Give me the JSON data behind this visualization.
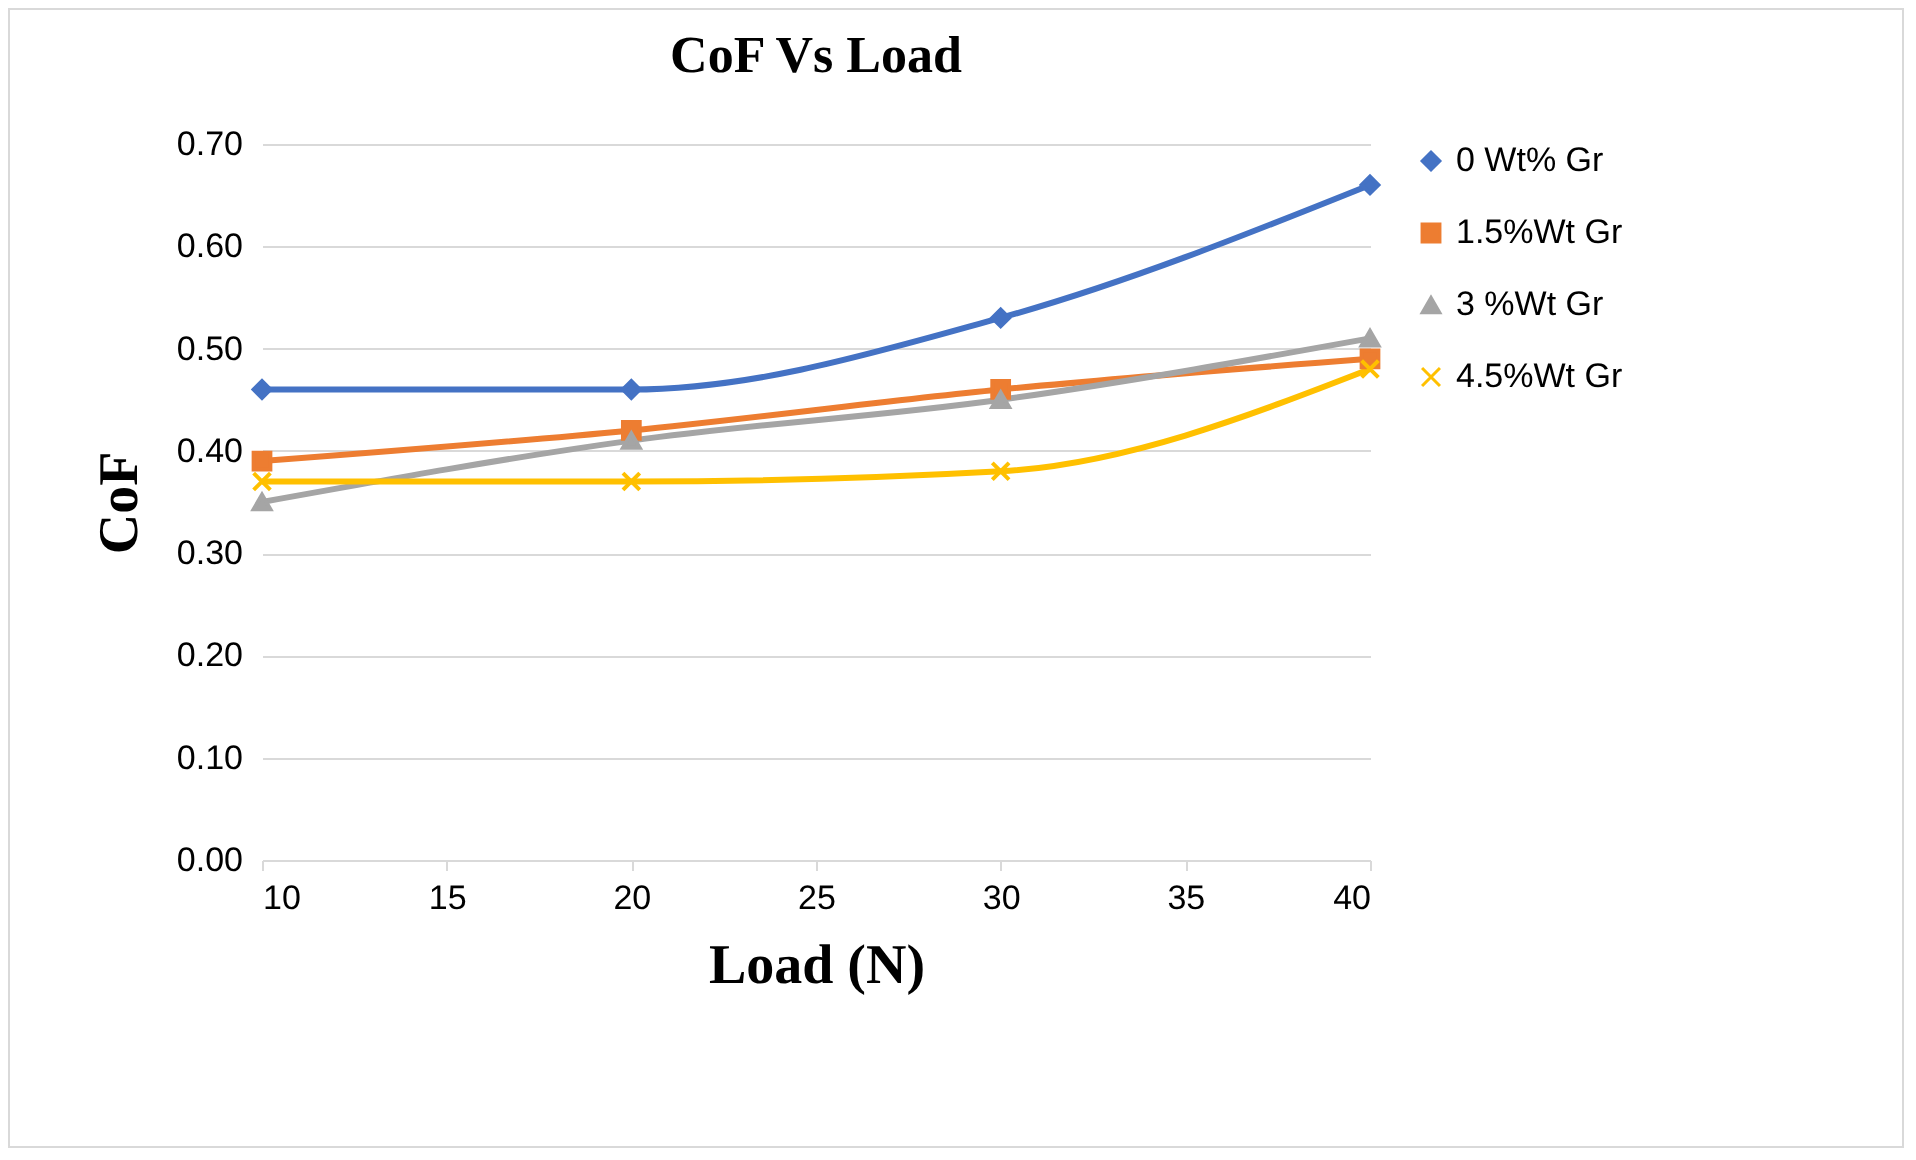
{
  "chart_data": {
    "type": "line",
    "title": "CoF Vs Load",
    "xlabel": "Load (N)",
    "ylabel": "CoF",
    "x": [
      10,
      20,
      30,
      40
    ],
    "series": [
      {
        "name": "0 Wt% Gr",
        "color": "#4472c4",
        "marker": "diamond",
        "values": [
          0.46,
          0.46,
          0.53,
          0.66
        ]
      },
      {
        "name": "1.5%Wt Gr",
        "color": "#ed7d31",
        "marker": "square",
        "values": [
          0.39,
          0.42,
          0.46,
          0.49
        ]
      },
      {
        "name": "3 %Wt Gr",
        "color": "#a5a5a5",
        "marker": "triangle",
        "values": [
          0.35,
          0.41,
          0.45,
          0.51
        ]
      },
      {
        "name": "4.5%Wt Gr",
        "color": "#ffc000",
        "marker": "cross",
        "values": [
          0.37,
          0.37,
          0.38,
          0.48
        ]
      }
    ],
    "xlim": [
      10,
      40
    ],
    "xticks": [
      10,
      15,
      20,
      25,
      30,
      35,
      40
    ],
    "ylim": [
      0,
      0.7
    ],
    "yticks": [
      {
        "value": 0,
        "label": "0.00"
      },
      {
        "value": 0.1,
        "label": "0.10"
      },
      {
        "value": 0.2,
        "label": "0.20"
      },
      {
        "value": 0.3,
        "label": "0.30"
      },
      {
        "value": 0.4,
        "label": "0.40"
      },
      {
        "value": 0.5,
        "label": "0.50"
      },
      {
        "value": 0.6,
        "label": "0.60"
      },
      {
        "value": 0.7,
        "label": "0.70"
      }
    ],
    "grid": "y",
    "legend": "right"
  }
}
